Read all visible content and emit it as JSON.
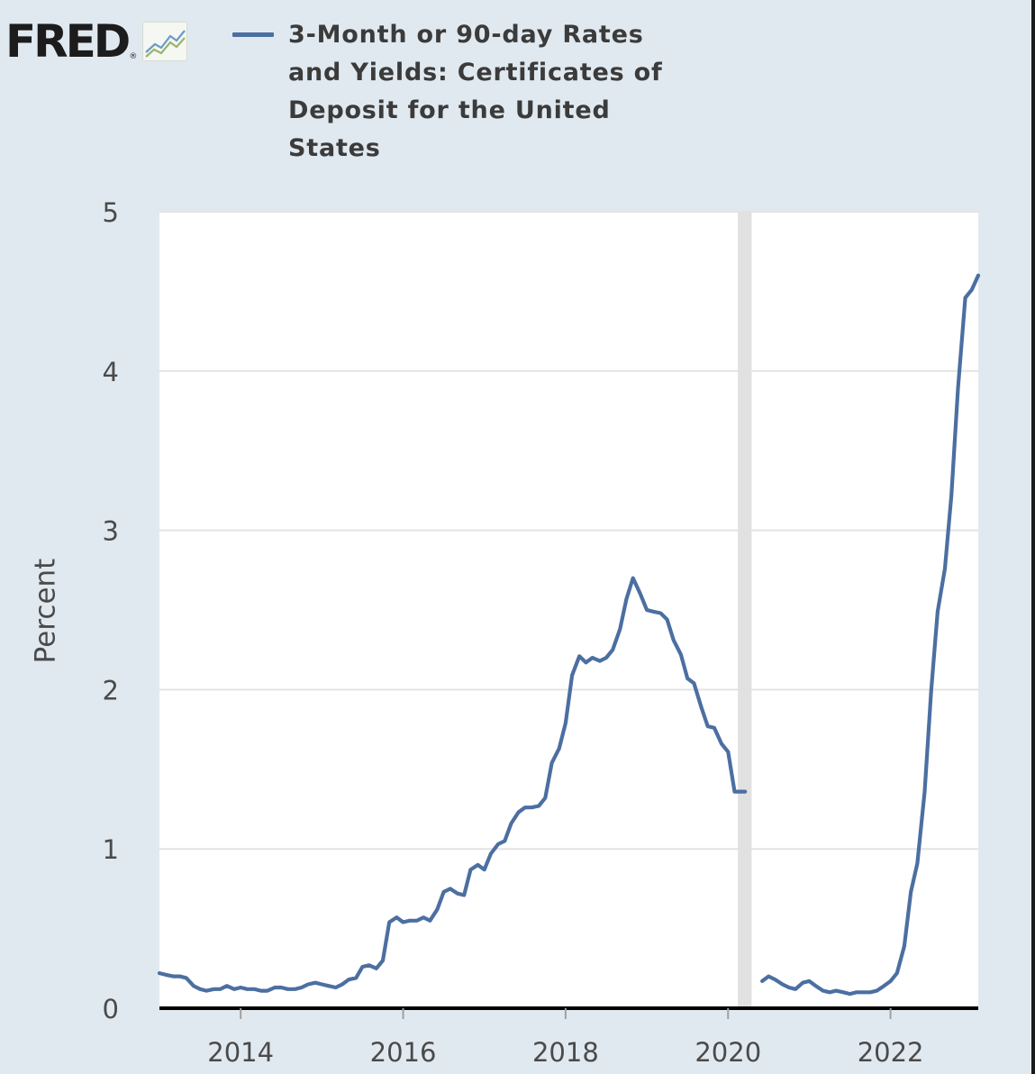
{
  "header": {
    "logo_text": "FRED",
    "logo_registered": "®",
    "legend_label": "3-Month or 90-day Rates and Yields: Certificates of Deposit for the United States"
  },
  "colors": {
    "background": "#e1e9f0",
    "plot_background": "#ffffff",
    "series": "#4c6fa1",
    "grid": "#e3e3e3",
    "recession": "#e1e1e1",
    "axis": "#000000"
  },
  "chart_data": {
    "type": "line",
    "title": "3-Month or 90-day Rates and Yields: Certificates of Deposit for the United States",
    "xlabel": "",
    "ylabel": "Percent",
    "xlim": [
      2013.0,
      2023.08
    ],
    "ylim": [
      0,
      5
    ],
    "x_ticks": [
      2014,
      2016,
      2018,
      2020,
      2022
    ],
    "x_tick_labels": [
      "2014",
      "2016",
      "2018",
      "2020",
      "2022"
    ],
    "y_ticks": [
      0,
      1,
      2,
      3,
      4,
      5
    ],
    "y_tick_labels": [
      "0",
      "1",
      "2",
      "3",
      "4",
      "5"
    ],
    "grid": true,
    "recession_shading": [
      2020.12,
      2020.29
    ],
    "series": [
      {
        "name": "3-Month or 90-day Rates and Yields: Certificates of Deposit for the United States",
        "segments": [
          {
            "x": [
              2013.0,
              2013.08,
              2013.17,
              2013.25,
              2013.33,
              2013.42,
              2013.5,
              2013.58,
              2013.67,
              2013.75,
              2013.83,
              2013.92,
              2014.0,
              2014.08,
              2014.17,
              2014.25,
              2014.33,
              2014.42,
              2014.5,
              2014.58,
              2014.67,
              2014.75,
              2014.83,
              2014.92,
              2015.0,
              2015.08,
              2015.17,
              2015.25,
              2015.33,
              2015.42,
              2015.5,
              2015.58,
              2015.67,
              2015.75,
              2015.83,
              2015.92,
              2016.0,
              2016.08,
              2016.17,
              2016.25,
              2016.33,
              2016.42,
              2016.5,
              2016.58,
              2016.67,
              2016.75,
              2016.83,
              2016.92,
              2017.0,
              2017.08,
              2017.17,
              2017.25,
              2017.33,
              2017.42,
              2017.5,
              2017.58,
              2017.67,
              2017.75,
              2017.83,
              2017.92,
              2018.0,
              2018.08,
              2018.17,
              2018.25,
              2018.33,
              2018.42,
              2018.5,
              2018.58,
              2018.67,
              2018.75,
              2018.83,
              2018.92,
              2019.0,
              2019.08,
              2019.17,
              2019.25,
              2019.33,
              2019.42,
              2019.5,
              2019.58,
              2019.67,
              2019.75,
              2019.83,
              2019.92,
              2020.0,
              2020.08,
              2020.17,
              2020.21
            ],
            "y": [
              0.22,
              0.21,
              0.2,
              0.2,
              0.19,
              0.14,
              0.12,
              0.11,
              0.12,
              0.12,
              0.14,
              0.12,
              0.13,
              0.12,
              0.12,
              0.11,
              0.11,
              0.13,
              0.13,
              0.12,
              0.12,
              0.13,
              0.15,
              0.16,
              0.15,
              0.14,
              0.13,
              0.15,
              0.18,
              0.19,
              0.26,
              0.27,
              0.25,
              0.3,
              0.54,
              0.57,
              0.54,
              0.55,
              0.55,
              0.57,
              0.55,
              0.62,
              0.73,
              0.75,
              0.72,
              0.71,
              0.87,
              0.9,
              0.87,
              0.97,
              1.03,
              1.05,
              1.16,
              1.23,
              1.26,
              1.26,
              1.27,
              1.32,
              1.54,
              1.63,
              1.79,
              2.09,
              2.21,
              2.17,
              2.2,
              2.18,
              2.2,
              2.25,
              2.38,
              2.57,
              2.7,
              2.6,
              2.5,
              2.49,
              2.48,
              2.44,
              2.31,
              2.22,
              2.07,
              2.04,
              1.89,
              1.77,
              1.76,
              1.66,
              1.61,
              1.36,
              1.36,
              1.36
            ]
          },
          {
            "x": [
              2020.42,
              2020.5,
              2020.58,
              2020.67,
              2020.75,
              2020.83,
              2020.92,
              2021.0,
              2021.08,
              2021.17,
              2021.25,
              2021.33,
              2021.42,
              2021.5,
              2021.58,
              2021.67,
              2021.75,
              2021.83,
              2021.92,
              2022.0,
              2022.08,
              2022.17,
              2022.25,
              2022.33,
              2022.42,
              2022.5,
              2022.58,
              2022.67,
              2022.75,
              2022.83,
              2022.92,
              2023.0,
              2023.08
            ],
            "y": [
              0.17,
              0.2,
              0.18,
              0.15,
              0.13,
              0.12,
              0.16,
              0.17,
              0.14,
              0.11,
              0.1,
              0.11,
              0.1,
              0.09,
              0.1,
              0.1,
              0.1,
              0.11,
              0.14,
              0.17,
              0.22,
              0.39,
              0.73,
              0.91,
              1.36,
              1.99,
              2.49,
              2.76,
              3.22,
              3.89,
              4.46,
              4.51,
              4.6
            ]
          }
        ]
      }
    ]
  }
}
